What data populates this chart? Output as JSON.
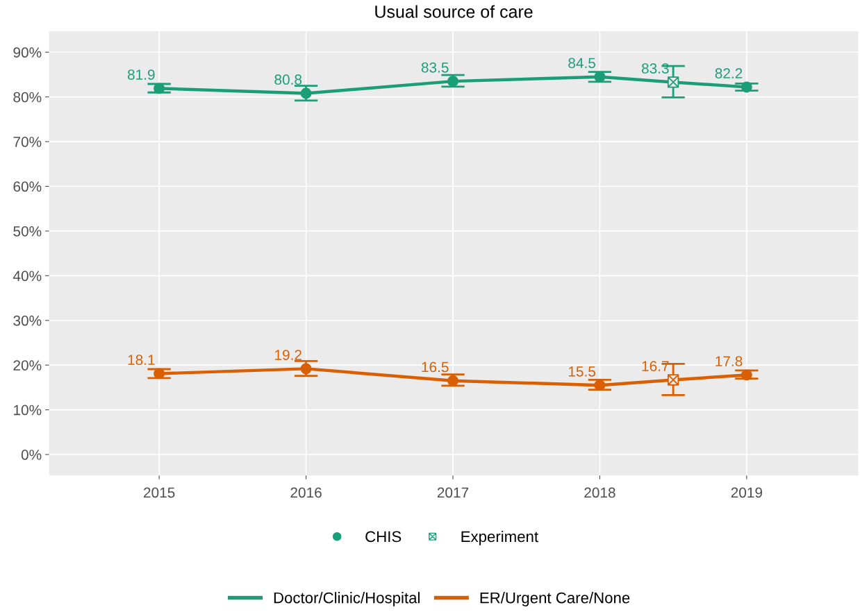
{
  "chart_data": {
    "type": "line",
    "title": "Usual source of care",
    "xlim": [
      2014.25,
      2019.76
    ],
    "xticks": [
      2015,
      2016,
      2017,
      2018,
      2019
    ],
    "ylim": [
      -4.7,
      94.7
    ],
    "yticks": [
      {
        "value": 0,
        "label": "0%"
      },
      {
        "value": 10,
        "label": "10%"
      },
      {
        "value": 20,
        "label": "20%"
      },
      {
        "value": 30,
        "label": "30%"
      },
      {
        "value": 40,
        "label": "40%"
      },
      {
        "value": 50,
        "label": "50%"
      },
      {
        "value": 60,
        "label": "60%"
      },
      {
        "value": 70,
        "label": "70%"
      },
      {
        "value": 80,
        "label": "80%"
      },
      {
        "value": 90,
        "label": "90%"
      }
    ],
    "grid": true,
    "legend": "bottom",
    "series": [
      {
        "name": "Doctor/Clinic/Hospital",
        "color": "#1b9e77",
        "marker": "none",
        "x": [
          2015,
          2016,
          2017,
          2018,
          2018.5,
          2019
        ],
        "values": [
          81.9,
          80.8,
          83.5,
          84.5,
          83.3,
          82.2
        ],
        "value_labels": [
          "81.9",
          "80.8",
          "83.5",
          "84.5",
          "83.3",
          "82.2"
        ],
        "errors": [
          [
            81.0,
            82.9
          ],
          [
            79.2,
            82.5
          ],
          [
            82.3,
            84.9
          ],
          [
            83.4,
            85.6
          ],
          [
            79.9,
            86.9
          ],
          [
            81.4,
            83.0
          ]
        ]
      },
      {
        "name": "ER/Urgent Care/None",
        "color": "#d95f02",
        "marker": "none",
        "x": [
          2015,
          2016,
          2017,
          2018,
          2018.5,
          2019
        ],
        "values": [
          18.1,
          19.2,
          16.5,
          15.5,
          16.7,
          17.8
        ],
        "value_labels": [
          "18.1",
          "19.2",
          "16.5",
          "15.5",
          "16.7",
          "17.8"
        ],
        "errors": [
          [
            17.1,
            19.1
          ],
          [
            17.6,
            20.9
          ],
          [
            15.4,
            17.9
          ],
          [
            14.5,
            16.7
          ],
          [
            13.3,
            20.3
          ],
          [
            17.0,
            18.8
          ]
        ]
      },
      {
        "type": "scatter",
        "name": "CHIS",
        "color": "#1b9e77",
        "marker": "circle",
        "x": [
          2015,
          2016,
          2017,
          2018,
          2019
        ],
        "values": [
          81.9,
          80.8,
          83.5,
          84.5,
          82.2
        ]
      },
      {
        "type": "scatter",
        "color": "#d95f02",
        "marker": "circle",
        "x": [
          2015,
          2016,
          2017,
          2018,
          2019
        ],
        "values": [
          18.1,
          19.2,
          16.5,
          15.5,
          17.8
        ]
      },
      {
        "type": "scatter",
        "name": "Experiment",
        "color": "#1b9e77",
        "marker": "cross",
        "x": [
          2018.5
        ],
        "values": [
          83.3
        ]
      },
      {
        "type": "scatter",
        "color": "#d95f02",
        "marker": "cross",
        "x": [
          2018.5
        ],
        "values": [
          16.7
        ]
      }
    ]
  }
}
